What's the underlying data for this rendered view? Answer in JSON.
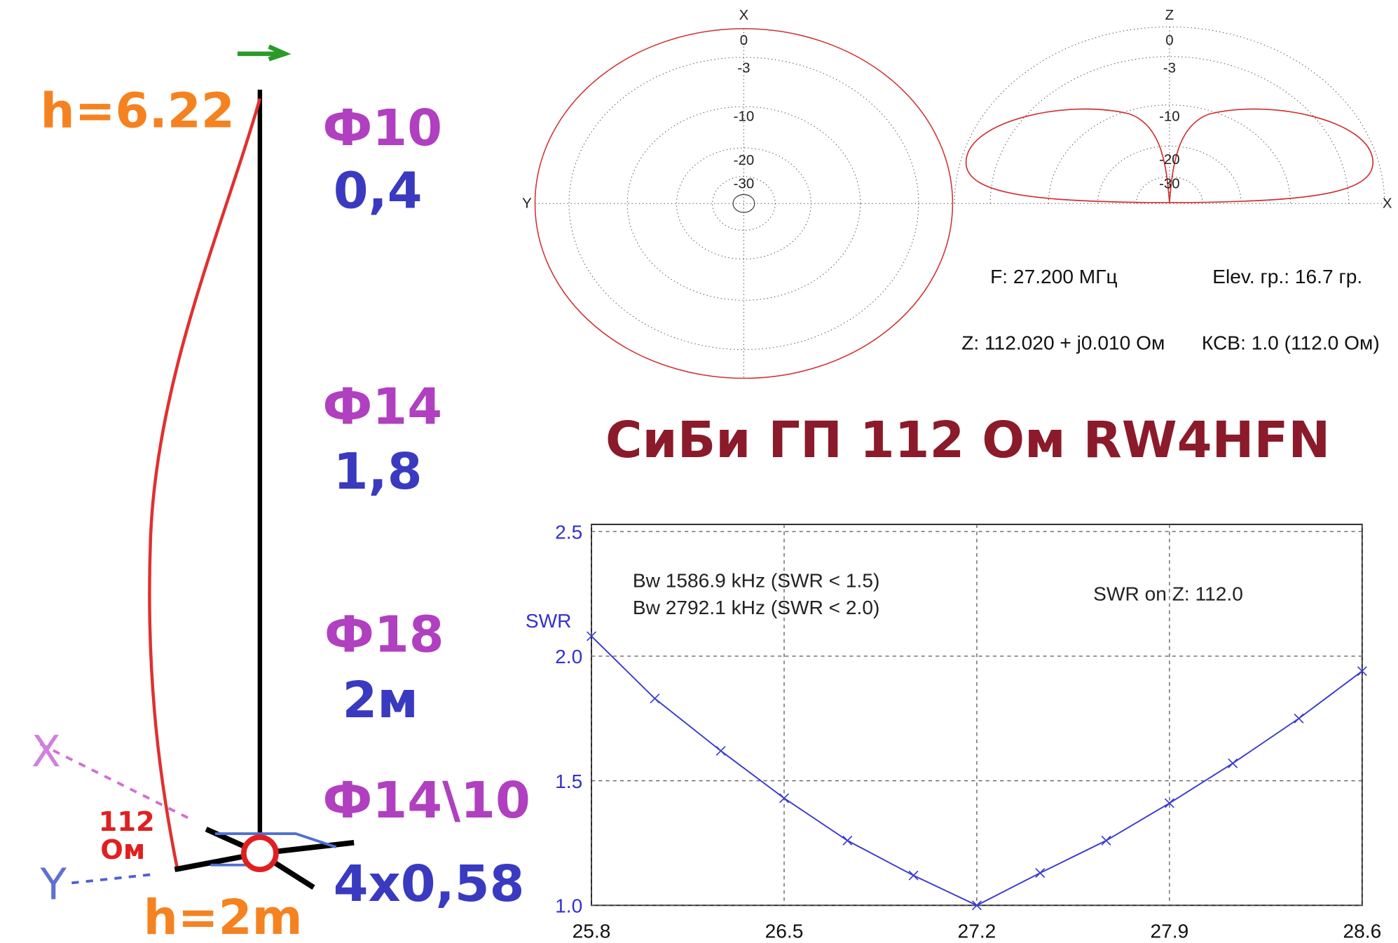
{
  "antenna": {
    "top_height": "h=6.22",
    "base_height": "h=2m",
    "impedance": "112",
    "impedance_unit": "Ом",
    "axis_x": "X",
    "axis_y": "Y",
    "sections": [
      {
        "diameter": "Ф10",
        "length": "0,4"
      },
      {
        "diameter": "Ф14",
        "length": "1,8"
      },
      {
        "diameter": "Ф18",
        "length": "2м"
      },
      {
        "diameter": "Ф14\\10",
        "length": "4x0,58"
      }
    ]
  },
  "polar": {
    "azimuth": {
      "axis_top": "X",
      "axis_side": "Y",
      "rings": [
        "0",
        "-3",
        "-10",
        "-20",
        "-30"
      ]
    },
    "elevation": {
      "axis_top": "Z",
      "axis_side": "X",
      "rings": [
        "0",
        "-3",
        "-10",
        "-20",
        "-30"
      ]
    }
  },
  "info": {
    "frequency": "F: 27.200 МГц",
    "elevation": "Elev. гр.: 16.7 гр.",
    "impedance": "Z: 112.020 + j0.010 Ом",
    "swr": "КСВ: 1.0 (112.0 Ом)"
  },
  "title": "СиБи ГП 112 Ом RW4HFN",
  "chart_data": {
    "type": "line",
    "y_label": "SWR",
    "annotations": [
      "Bw 1586.9 kHz (SWR < 1.5)",
      "Bw 2792.1 kHz (SWR < 2.0)",
      "SWR on Z: 112.0"
    ],
    "x": [
      25.8,
      26.03,
      26.27,
      26.5,
      26.73,
      26.97,
      27.2,
      27.43,
      27.67,
      27.9,
      28.13,
      28.37,
      28.6
    ],
    "series": [
      {
        "color": "#3a3ad0",
        "values": [
          2.08,
          1.83,
          1.62,
          1.43,
          1.26,
          1.12,
          1.0,
          1.13,
          1.26,
          1.41,
          1.57,
          1.75,
          1.94
        ]
      }
    ],
    "xlim": [
      25.8,
      28.6
    ],
    "xticks": [
      25.8,
      26.5,
      27.2,
      27.9,
      28.6
    ],
    "ylim": [
      1.0,
      2.5
    ],
    "yticks": [
      {
        "value": 1.0,
        "label": "1.0"
      },
      1.5,
      {
        "value": 2.0,
        "label": "2.0"
      },
      {
        "value": 2.5,
        "label": "2.5"
      }
    ],
    "grid": true
  }
}
